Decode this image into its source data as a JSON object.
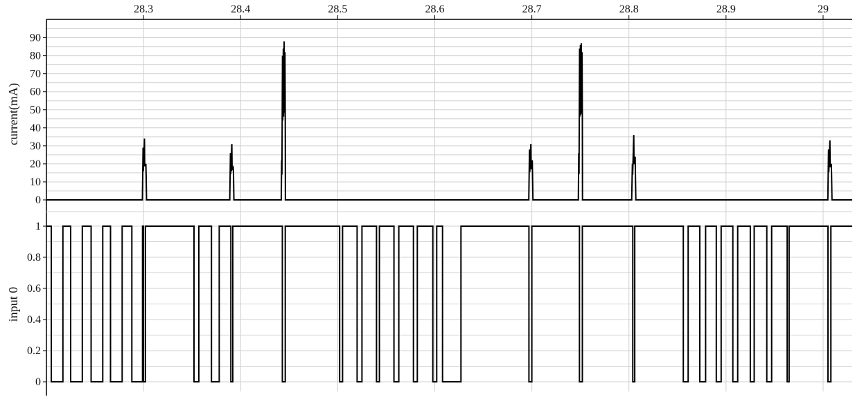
{
  "chart_data": [
    {
      "type": "line",
      "panel": "current",
      "title": "",
      "xlabel": "",
      "ylabel": "current(mA)",
      "xlim": [
        28.2,
        29.03
      ],
      "ylim": [
        -5,
        100
      ],
      "grid": true,
      "x_ticks": [
        28.3,
        28.4,
        28.5,
        28.6,
        28.7,
        28.8,
        28.9,
        29
      ],
      "x_tick_labels": [
        "28.3",
        "28.4",
        "28.5",
        "28.6",
        "28.7",
        "28.8",
        "28.9",
        "29"
      ],
      "y_ticks": [
        0,
        10,
        20,
        30,
        40,
        50,
        60,
        70,
        80,
        90
      ],
      "y_tick_labels": [
        "0",
        "10",
        "20",
        "30",
        "40",
        "50",
        "60",
        "70",
        "80",
        "90"
      ],
      "baseline": 0,
      "pulses": [
        {
          "x": 28.301,
          "peaks": [
            29,
            34,
            20
          ]
        },
        {
          "x": 28.391,
          "peaks": [
            26,
            31,
            18
          ]
        },
        {
          "x": 28.444,
          "peaks": [
            22,
            80,
            84,
            88,
            82
          ]
        },
        {
          "x": 28.699,
          "peaks": [
            28,
            31,
            22
          ]
        },
        {
          "x": 28.75,
          "peaks": [
            26,
            84,
            86,
            87,
            82
          ]
        },
        {
          "x": 28.805,
          "peaks": [
            20,
            36,
            24
          ]
        },
        {
          "x": 29.007,
          "peaks": [
            28,
            33,
            20
          ]
        }
      ]
    },
    {
      "type": "line",
      "panel": "digital",
      "title": "",
      "xlabel": "",
      "ylabel": "input 0",
      "xlim": [
        28.2,
        29.03
      ],
      "ylim": [
        -0.05,
        1.05
      ],
      "grid": true,
      "y_ticks": [
        0,
        0.2,
        0.4,
        0.6,
        0.8,
        1
      ],
      "y_tick_labels": [
        "0",
        "0.2",
        "0.4",
        "0.6",
        "0.8",
        "1"
      ],
      "initial_level": 1,
      "transitions": [
        28.205,
        28.217,
        28.225,
        28.237,
        28.246,
        28.258,
        28.266,
        28.278,
        28.288,
        28.299,
        28.3,
        28.302,
        28.352,
        28.357,
        28.37,
        28.378,
        28.39,
        28.392,
        28.443,
        28.446,
        28.502,
        28.505,
        28.52,
        28.525,
        28.54,
        28.543,
        28.558,
        28.563,
        28.578,
        28.582,
        28.598,
        28.602,
        28.608,
        28.627,
        28.697,
        28.7,
        28.749,
        28.752,
        28.804,
        28.806,
        28.856,
        28.861,
        28.873,
        28.879,
        28.89,
        28.895,
        28.907,
        28.912,
        28.925,
        28.929,
        28.942,
        28.947,
        28.963,
        28.965,
        29.005,
        29.008
      ]
    }
  ]
}
